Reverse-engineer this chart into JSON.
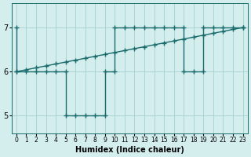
{
  "xlabel": "Humidex (Indice chaleur)",
  "background_color": "#d4eeee",
  "grid_color": "#aad4d4",
  "line_color": "#1a6b6b",
  "xlim": [
    -0.5,
    23.5
  ],
  "ylim": [
    4.6,
    7.55
  ],
  "yticks": [
    5,
    6,
    7
  ],
  "xticks": [
    0,
    1,
    2,
    3,
    4,
    5,
    6,
    7,
    8,
    9,
    10,
    11,
    12,
    13,
    14,
    15,
    16,
    17,
    18,
    19,
    20,
    21,
    22,
    23
  ],
  "line1_x": [
    0,
    0,
    1,
    2,
    3,
    4,
    5,
    5,
    6,
    7,
    8,
    9,
    9,
    10,
    10,
    11,
    12,
    13,
    14,
    15,
    16,
    17,
    17,
    18,
    19,
    19,
    20,
    21,
    22,
    23
  ],
  "line1_y": [
    7,
    6,
    6,
    6,
    6,
    6,
    6,
    5,
    5,
    5,
    5,
    5,
    6,
    6,
    7,
    7,
    7,
    7,
    7,
    7,
    7,
    7,
    6,
    6,
    6,
    7,
    7,
    7,
    7,
    7
  ],
  "line2_x": [
    0,
    1,
    2,
    3,
    4,
    5,
    6,
    7,
    8,
    9,
    10,
    11,
    12,
    13,
    14,
    15,
    16,
    17,
    18,
    19,
    20,
    21,
    22,
    23
  ],
  "line2_y": [
    6.0,
    6.043,
    6.087,
    6.13,
    6.174,
    6.217,
    6.261,
    6.304,
    6.348,
    6.391,
    6.435,
    6.478,
    6.522,
    6.565,
    6.609,
    6.652,
    6.696,
    6.739,
    6.783,
    6.826,
    6.87,
    6.913,
    6.957,
    7.0
  ],
  "marker": "+",
  "markersize": 4,
  "markeredgewidth": 1.0,
  "linewidth": 1.0
}
